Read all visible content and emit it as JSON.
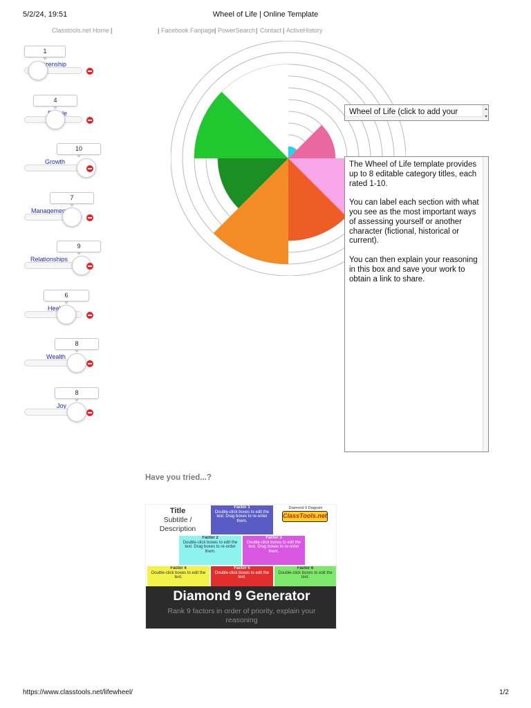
{
  "print_header": {
    "datetime": "5/2/24, 19:51",
    "title": "Wheel of Life | Online Template"
  },
  "nav": {
    "items": [
      "Classtools.net Home",
      "Facebook Fanpage",
      "PowerSearch",
      "Contact",
      "ActiveHistory"
    ],
    "separator": "|"
  },
  "categories": [
    {
      "label": "Citizenship",
      "value": "1",
      "score": 1,
      "color": "#1fd6f0"
    },
    {
      "label": "People",
      "value": "4",
      "score": 4,
      "color": "#e968a0"
    },
    {
      "label": "Growth",
      "value": "10",
      "score": 10,
      "color": "#f7a6ea"
    },
    {
      "label": "Management",
      "value": "7",
      "score": 7,
      "color": "#ef5d27"
    },
    {
      "label": "Relationships",
      "value": "9",
      "score": 9,
      "color": "#f48c25"
    },
    {
      "label": "Health",
      "value": "6",
      "score": 6,
      "color": "#1b8e24"
    },
    {
      "label": "Wealth",
      "value": "8",
      "score": 8,
      "color": "#21c72e"
    },
    {
      "label": "Joy",
      "value": "8",
      "score": 8,
      "color": "#ffffff"
    }
  ],
  "wheel_title": {
    "text": "Wheel of Life (click to add your"
  },
  "description": {
    "paragraphs": [
      "The Wheel of Life template provides up to 8 editable category titles, each rated 1-10.",
      "You can label each section with what you see as the most important ways of assessing yourself or another character (fictional, historical or current).",
      "You can then explain your reasoning in this box and save your work to obtain a link to share."
    ]
  },
  "promo": {
    "heading": "Have you tried...?",
    "diamond": {
      "title": "Title",
      "subtitle": "Subtitle / Description",
      "logo_label": "Diamond 9 Diagram",
      "logo_text": "ClassTools.net",
      "factors": [
        {
          "name": "Factor 1",
          "text": "Double-click boxes to edit the text. Drag boxes to re-order them.",
          "color": "#5b5bc6"
        },
        {
          "name": "Factor 2",
          "text": "Double-click boxes to edit the text. Drag boxes to re-order them.",
          "color": "#8ef3ef"
        },
        {
          "name": "Factor 3",
          "text": "Double-click boxes to edit the text. Drag boxes to re-order them.",
          "color": "#d856e2"
        },
        {
          "name": "Factor 4",
          "text": "Double-click boxes to edit the text.",
          "color": "#f2f24a"
        },
        {
          "name": "Factor 5",
          "text": "Double-click boxes to edit the text.",
          "color": "#e32e2e"
        },
        {
          "name": "Factor 6",
          "text": "Double-click boxes to edit the text.",
          "color": "#7ee86a"
        }
      ]
    },
    "title": "Diamond 9 Generator",
    "subtitle": "Rank 9 factors in order of priority, explain your reasoning"
  },
  "print_footer": {
    "url": "https://www.classtools.net/lifewheel/",
    "page": "1/2"
  }
}
